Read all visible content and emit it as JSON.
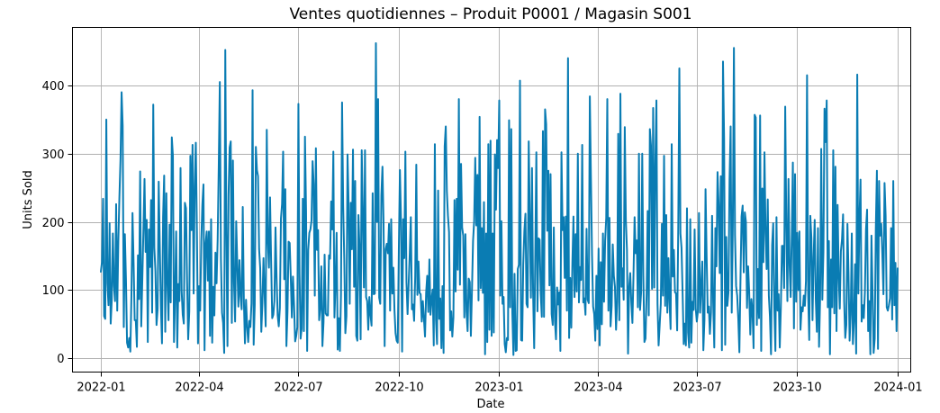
{
  "chart_data": {
    "type": "line",
    "title": "Ventes quotidiennes – Produit P0001 / Magasin S001",
    "xlabel": "Date",
    "ylabel": "Units Sold",
    "x_range": [
      "2021-12-06",
      "2024-01-13"
    ],
    "ylim": [
      -20,
      485
    ],
    "grid": true,
    "x_ticks": [
      "2022-01",
      "2022-04",
      "2022-07",
      "2022-10",
      "2023-01",
      "2023-04",
      "2023-07",
      "2023-10",
      "2024-01"
    ],
    "y_ticks": [
      0,
      100,
      200,
      300,
      400
    ],
    "series": [
      {
        "color": "#0a7cb3",
        "x_start": "2022-01-01",
        "x_end": "2024-01-01",
        "anchors": [
          [
            "2022-01-01",
            127
          ],
          [
            "2022-01-06",
            350
          ],
          [
            "2022-01-20",
            390
          ],
          [
            "2022-02-18",
            372
          ],
          [
            "2022-04-20",
            405
          ],
          [
            "2022-04-25",
            452
          ],
          [
            "2022-05-20",
            393
          ],
          [
            "2022-07-01",
            373
          ],
          [
            "2022-08-10",
            375
          ],
          [
            "2022-09-10",
            462
          ],
          [
            "2022-09-12",
            380
          ],
          [
            "2022-11-25",
            380
          ],
          [
            "2023-01-01",
            378
          ],
          [
            "2023-01-20",
            407
          ],
          [
            "2023-03-05",
            440
          ],
          [
            "2023-03-25",
            384
          ],
          [
            "2023-04-10",
            380
          ],
          [
            "2023-04-22",
            388
          ],
          [
            "2023-06-15",
            425
          ],
          [
            "2023-07-25",
            435
          ],
          [
            "2023-08-04",
            455
          ],
          [
            "2023-09-20",
            369
          ],
          [
            "2023-10-10",
            415
          ],
          [
            "2023-10-28",
            378
          ],
          [
            "2023-11-25",
            416
          ],
          [
            "2023-12-31",
            40
          ]
        ]
      }
    ]
  }
}
